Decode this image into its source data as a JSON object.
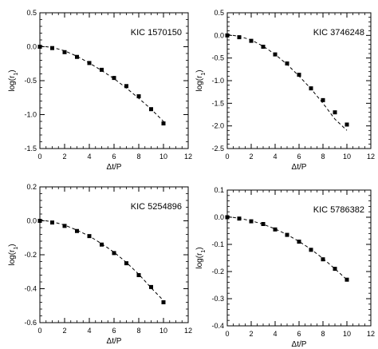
{
  "chart_data": [
    {
      "type": "scatter",
      "title": "KIC 1570150",
      "xlabel": "Δt/P",
      "ylabel": "log(r1)",
      "xlim": [
        0,
        12
      ],
      "ylim": [
        -1.5,
        0.5
      ],
      "xticks": [
        0,
        2,
        4,
        6,
        8,
        10,
        12
      ],
      "yticks": [
        -1.5,
        -1.0,
        -0.5,
        0.0,
        0.5
      ],
      "ytick_labels": [
        "-1.5",
        "-1.0",
        "-0.5",
        "0.0",
        "0.5"
      ],
      "series": [
        {
          "type": "scatter",
          "marker": "filled-square",
          "x": [
            0,
            1,
            2,
            3,
            4,
            5,
            6,
            7,
            8,
            9,
            10
          ],
          "y": [
            0.0,
            -0.02,
            -0.08,
            -0.15,
            -0.24,
            -0.34,
            -0.46,
            -0.58,
            -0.73,
            -0.92,
            -1.13
          ]
        },
        {
          "type": "line",
          "style": "dashed",
          "x": [
            0,
            1,
            2,
            3,
            4,
            5,
            6,
            7,
            8,
            9,
            10
          ],
          "y": [
            0.01,
            -0.01,
            -0.06,
            -0.14,
            -0.24,
            -0.35,
            -0.47,
            -0.61,
            -0.76,
            -0.92,
            -1.1
          ]
        }
      ]
    },
    {
      "type": "scatter",
      "title": "KIC 3746248",
      "xlabel": "Δt/P",
      "ylabel": "log(r1)",
      "xlim": [
        0,
        12
      ],
      "ylim": [
        -2.5,
        0.5
      ],
      "xticks": [
        0,
        2,
        4,
        6,
        8,
        10,
        12
      ],
      "yticks": [
        -2.5,
        -2.0,
        -1.5,
        -1.0,
        -0.5,
        0.0,
        0.5
      ],
      "ytick_labels": [
        "-2.5",
        "-2.0",
        "-1.5",
        "-1.0",
        "-0.5",
        "0.0",
        "0.5"
      ],
      "series": [
        {
          "type": "scatter",
          "marker": "filled-square",
          "x": [
            0,
            1,
            2,
            3,
            4,
            5,
            6,
            7,
            8,
            9,
            10
          ],
          "y": [
            0.0,
            -0.04,
            -0.12,
            -0.25,
            -0.42,
            -0.62,
            -0.87,
            -1.17,
            -1.43,
            -1.7,
            -1.97
          ]
        },
        {
          "type": "line",
          "style": "dashed",
          "x": [
            0,
            1,
            2,
            3,
            4,
            5,
            6,
            7,
            8,
            9,
            10
          ],
          "y": [
            0.02,
            -0.02,
            -0.1,
            -0.24,
            -0.42,
            -0.64,
            -0.9,
            -1.18,
            -1.5,
            -1.85,
            -2.1
          ]
        }
      ]
    },
    {
      "type": "scatter",
      "title": "KIC 5254896",
      "xlabel": "Δt/P",
      "ylabel": "log(r1)",
      "xlim": [
        0,
        12
      ],
      "ylim": [
        -0.6,
        0.2
      ],
      "xticks": [
        0,
        2,
        4,
        6,
        8,
        10,
        12
      ],
      "yticks": [
        -0.6,
        -0.4,
        -0.2,
        0.0,
        0.2
      ],
      "ytick_labels": [
        "-0.6",
        "-0.4",
        "-0.2",
        "0.0",
        "0.2"
      ],
      "series": [
        {
          "type": "scatter",
          "marker": "filled-square",
          "x": [
            0,
            1,
            2,
            3,
            4,
            5,
            6,
            7,
            8,
            9,
            10
          ],
          "y": [
            0.0,
            -0.01,
            -0.03,
            -0.06,
            -0.09,
            -0.14,
            -0.19,
            -0.25,
            -0.32,
            -0.39,
            -0.48
          ]
        },
        {
          "type": "line",
          "style": "dashed",
          "x": [
            0,
            1,
            2,
            3,
            4,
            5,
            6,
            7,
            8,
            9,
            10
          ],
          "y": [
            0.005,
            -0.005,
            -0.025,
            -0.055,
            -0.09,
            -0.135,
            -0.185,
            -0.245,
            -0.315,
            -0.395,
            -0.47
          ]
        }
      ]
    },
    {
      "type": "scatter",
      "title": "KIC 5786382",
      "xlabel": "Δt/P",
      "ylabel": "log(r1)",
      "xlim": [
        0,
        12
      ],
      "ylim": [
        -0.4,
        0.1
      ],
      "xticks": [
        0,
        2,
        4,
        6,
        8,
        10,
        12
      ],
      "yticks": [
        -0.4,
        -0.3,
        -0.2,
        -0.1,
        0.0,
        0.1
      ],
      "ytick_labels": [
        "-0.4",
        "-0.3",
        "-0.2",
        "-0.1",
        "0.0",
        "0.1"
      ],
      "series": [
        {
          "type": "scatter",
          "marker": "filled-square",
          "x": [
            0,
            1,
            2,
            3,
            4,
            5,
            6,
            7,
            8,
            9,
            10
          ],
          "y": [
            0.0,
            -0.005,
            -0.015,
            -0.025,
            -0.045,
            -0.065,
            -0.09,
            -0.12,
            -0.155,
            -0.19,
            -0.23
          ]
        },
        {
          "type": "line",
          "style": "dashed",
          "x": [
            0,
            1,
            2,
            3,
            4,
            5,
            6,
            7,
            8,
            9,
            10
          ],
          "y": [
            0.003,
            -0.004,
            -0.013,
            -0.026,
            -0.043,
            -0.064,
            -0.089,
            -0.118,
            -0.152,
            -0.19,
            -0.23
          ]
        }
      ]
    }
  ]
}
